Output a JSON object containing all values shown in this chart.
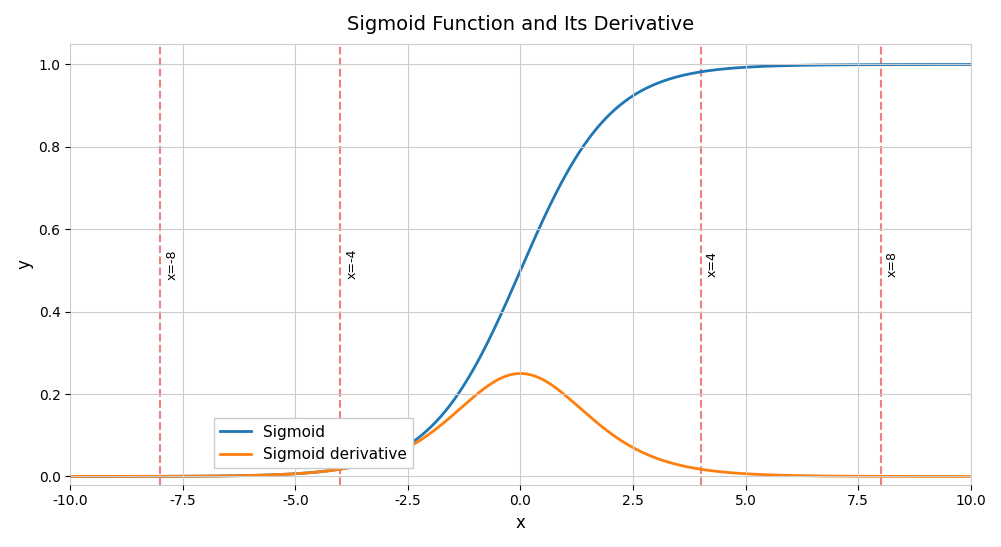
{
  "title": "Sigmoid Function and Its Derivative",
  "xlabel": "x",
  "ylabel": "y",
  "xlim": [
    -10,
    10
  ],
  "ylim": [
    -0.02,
    1.05
  ],
  "sigmoid_color": "#1f77b4",
  "derivative_color": "#ff7f0e",
  "sigmoid_label": "Sigmoid",
  "derivative_label": "Sigmoid derivative",
  "vlines": [
    -8,
    -4,
    4,
    8
  ],
  "vline_color": "#f08080",
  "vline_labels": [
    "x=-8",
    "x=-4",
    "x=4",
    "x=8"
  ],
  "xticks": [
    -10.0,
    -7.5,
    -5.0,
    -2.5,
    0.0,
    2.5,
    5.0,
    7.5,
    10.0
  ],
  "yticks": [
    0.0,
    0.2,
    0.4,
    0.6,
    0.8,
    1.0
  ],
  "grid_color": "#cccccc",
  "figsize": [
    10.01,
    5.47
  ],
  "dpi": 100,
  "legend_loc": "lower center",
  "bg_color": "#ffffff",
  "axes_bg": "#ffffff"
}
